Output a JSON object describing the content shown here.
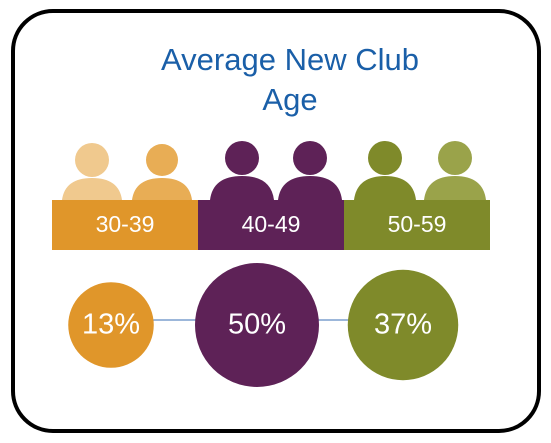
{
  "chart_data": {
    "type": "bubble",
    "title": "Average New Club Age",
    "categories": [
      "30-39",
      "40-49",
      "50-59"
    ],
    "values": [
      13,
      50,
      37
    ],
    "value_labels": [
      "13%",
      "50%",
      "37%"
    ],
    "colors": [
      "#e0962a",
      "#5e2257",
      "#7f8a2a"
    ]
  }
}
